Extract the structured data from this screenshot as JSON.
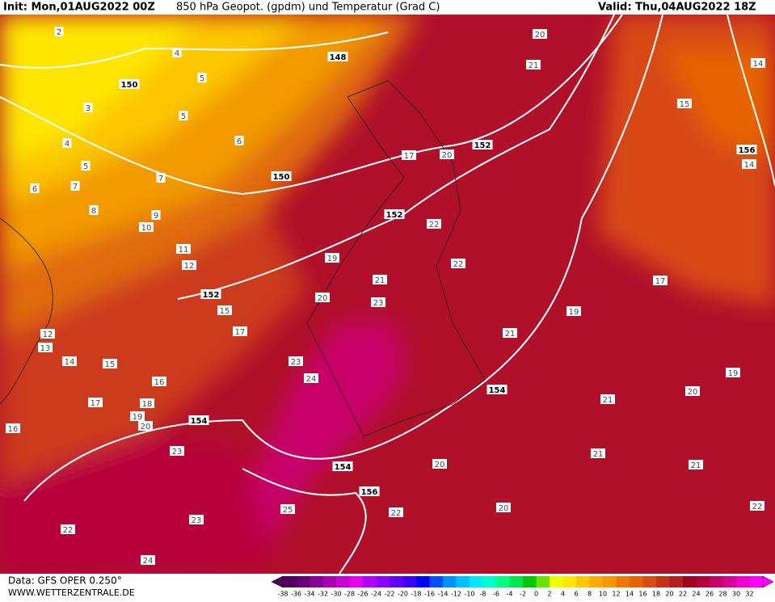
{
  "header": {
    "init": "Init: Mon,01AUG2022 00Z",
    "title": "850 hPa Geopot. (gpdm) und Temperatur (Grad C)",
    "valid": "Valid: Thu,04AUG2022 18Z"
  },
  "geopotential_labels": [
    "148",
    "150",
    "150",
    "152",
    "152",
    "152",
    "154",
    "154",
    "154",
    "156",
    "156"
  ],
  "temperature_labels": [
    "20",
    "21",
    "15",
    "14",
    "14",
    "20",
    "17",
    "22",
    "22",
    "19",
    "21",
    "23",
    "20",
    "21",
    "19",
    "17",
    "19",
    "20",
    "21",
    "21",
    "21",
    "22",
    "20",
    "20",
    "22",
    "25",
    "24",
    "23",
    "23",
    "23",
    "24",
    "15",
    "15",
    "17",
    "16",
    "18",
    "20",
    "19",
    "17",
    "16",
    "22",
    "14",
    "13",
    "12",
    "12",
    "11",
    "10",
    "9",
    "8",
    "7",
    "6",
    "5",
    "5",
    "5",
    "4",
    "4",
    "3",
    "2",
    "6",
    "7"
  ],
  "legend": {
    "values": [
      -38,
      -36,
      -34,
      -32,
      -30,
      -28,
      -26,
      -24,
      -22,
      -20,
      -18,
      -16,
      -14,
      -12,
      -10,
      -8,
      -6,
      -4,
      -2,
      0,
      2,
      4,
      6,
      8,
      10,
      12,
      14,
      16,
      18,
      20,
      22,
      24,
      26,
      28,
      30,
      32
    ],
    "colors": [
      "#50005a",
      "#6a0078",
      "#8a0096",
      "#a800b4",
      "#c800d2",
      "#e600f0",
      "#b400ff",
      "#8c00ff",
      "#6400ff",
      "#3c00ff",
      "#0000ff",
      "#0050ff",
      "#0090ff",
      "#00c0ff",
      "#00e6ff",
      "#00ffc8",
      "#00ff80",
      "#00e650",
      "#00c800",
      "#64e600",
      "#f0ff00",
      "#ffe600",
      "#ffc800",
      "#ffaa00",
      "#ff9600",
      "#f07800",
      "#e66400",
      "#dc4b14",
      "#c83214",
      "#b41e1e",
      "#a0001e",
      "#b4003c",
      "#c80064",
      "#dc0096",
      "#f000c8",
      "#ff00ff"
    ]
  },
  "footer": {
    "data": "Data: GFS OPER 0.250°",
    "site": "WWW.WETTERZENTRALE.DE"
  }
}
